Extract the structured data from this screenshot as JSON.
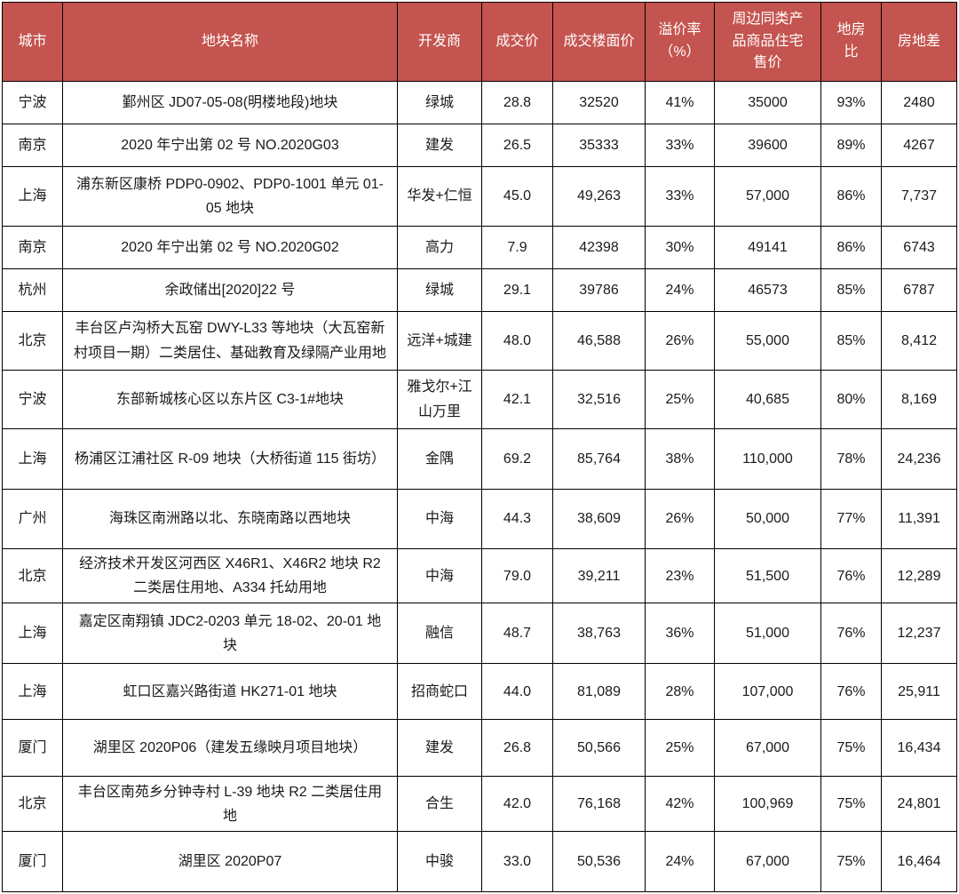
{
  "colors": {
    "header_bg": "#C4544F",
    "header_text": "#FFFFFF",
    "border": "#000000",
    "body_text": "#1A1A1A"
  },
  "table": {
    "columns": [
      "城市",
      "地块名称",
      "开发商",
      "成交价",
      "成交楼面价",
      "溢价率（%）",
      "周边同类产品商品住宅售价",
      "地房比",
      "房地差"
    ],
    "rows": [
      {
        "city": "宁波",
        "plot_name": "鄞州区 JD07-05-08(明楼地段)地块",
        "developer": "绿城",
        "deal_price": "28.8",
        "floor_price": "32520",
        "premium_rate": "41%",
        "nearby_home_price": "35000",
        "land_house_ratio": "93%",
        "house_land_gap": "2480"
      },
      {
        "city": "南京",
        "plot_name": "2020 年宁出第 02 号 NO.2020G03",
        "developer": "建发",
        "deal_price": "26.5",
        "floor_price": "35333",
        "premium_rate": "33%",
        "nearby_home_price": "39600",
        "land_house_ratio": "89%",
        "house_land_gap": "4267"
      },
      {
        "city": "上海",
        "plot_name": "浦东新区康桥 PDP0-0902、PDP0-1001 单元 01-05 地块",
        "developer": "华发+仁恒",
        "deal_price": "45.0",
        "floor_price": "49,263",
        "premium_rate": "33%",
        "nearby_home_price": "57,000",
        "land_house_ratio": "86%",
        "house_land_gap": "7,737"
      },
      {
        "city": "南京",
        "plot_name": "2020 年宁出第 02 号 NO.2020G02",
        "developer": "高力",
        "deal_price": "7.9",
        "floor_price": "42398",
        "premium_rate": "30%",
        "nearby_home_price": "49141",
        "land_house_ratio": "86%",
        "house_land_gap": "6743"
      },
      {
        "city": "杭州",
        "plot_name": "余政储出[2020]22 号",
        "developer": "绿城",
        "deal_price": "29.1",
        "floor_price": "39786",
        "premium_rate": "24%",
        "nearby_home_price": "46573",
        "land_house_ratio": "85%",
        "house_land_gap": "6787"
      },
      {
        "city": "北京",
        "plot_name": "丰台区卢沟桥大瓦窑 DWY-L33 等地块（大瓦窑新村项目一期）二类居住、基础教育及绿隔产业用地",
        "developer": "远洋+城建",
        "deal_price": "48.0",
        "floor_price": "46,588",
        "premium_rate": "26%",
        "nearby_home_price": "55,000",
        "land_house_ratio": "85%",
        "house_land_gap": "8,412"
      },
      {
        "city": "宁波",
        "plot_name": "东部新城核心区以东片区 C3-1#地块",
        "developer": "雅戈尔+江山万里",
        "deal_price": "42.1",
        "floor_price": "32,516",
        "premium_rate": "25%",
        "nearby_home_price": "40,685",
        "land_house_ratio": "80%",
        "house_land_gap": "8,169"
      },
      {
        "city": "上海",
        "plot_name": "杨浦区江浦社区 R-09 地块（大桥街道 115 街坊）",
        "developer": "金隅",
        "deal_price": "69.2",
        "floor_price": "85,764",
        "premium_rate": "38%",
        "nearby_home_price": "110,000",
        "land_house_ratio": "78%",
        "house_land_gap": "24,236"
      },
      {
        "city": "广州",
        "plot_name": "海珠区南洲路以北、东晓南路以西地块",
        "developer": "中海",
        "deal_price": "44.3",
        "floor_price": "38,609",
        "premium_rate": "26%",
        "nearby_home_price": "50,000",
        "land_house_ratio": "77%",
        "house_land_gap": "11,391"
      },
      {
        "city": "北京",
        "plot_name": "经济技术开发区河西区 X46R1、X46R2 地块 R2 二类居住用地、A334 托幼用地",
        "developer": "中海",
        "deal_price": "79.0",
        "floor_price": "39,211",
        "premium_rate": "23%",
        "nearby_home_price": "51,500",
        "land_house_ratio": "76%",
        "house_land_gap": "12,289"
      },
      {
        "city": "上海",
        "plot_name": "嘉定区南翔镇 JDC2-0203 单元 18-02、20-01 地块",
        "developer": "融信",
        "deal_price": "48.7",
        "floor_price": "38,763",
        "premium_rate": "36%",
        "nearby_home_price": "51,000",
        "land_house_ratio": "76%",
        "house_land_gap": "12,237"
      },
      {
        "city": "上海",
        "plot_name": "虹口区嘉兴路街道 HK271-01 地块",
        "developer": "招商蛇口",
        "deal_price": "44.0",
        "floor_price": "81,089",
        "premium_rate": "28%",
        "nearby_home_price": "107,000",
        "land_house_ratio": "76%",
        "house_land_gap": "25,911"
      },
      {
        "city": "厦门",
        "plot_name": "湖里区 2020P06（建发五缘映月项目地块）",
        "developer": "建发",
        "deal_price": "26.8",
        "floor_price": "50,566",
        "premium_rate": "25%",
        "nearby_home_price": "67,000",
        "land_house_ratio": "75%",
        "house_land_gap": "16,434"
      },
      {
        "city": "北京",
        "plot_name": "丰台区南苑乡分钟寺村 L-39 地块 R2 二类居住用地",
        "developer": "合生",
        "deal_price": "42.0",
        "floor_price": "76,168",
        "premium_rate": "42%",
        "nearby_home_price": "100,969",
        "land_house_ratio": "75%",
        "house_land_gap": "24,801"
      },
      {
        "city": "厦门",
        "plot_name": "湖里区 2020P07",
        "developer": "中骏",
        "deal_price": "33.0",
        "floor_price": "50,536",
        "premium_rate": "24%",
        "nearby_home_price": "67,000",
        "land_house_ratio": "75%",
        "house_land_gap": "16,464"
      }
    ]
  }
}
